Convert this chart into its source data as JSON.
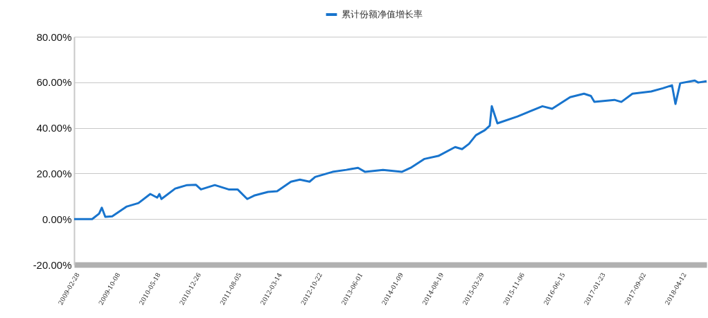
{
  "chart_data": {
    "type": "line",
    "legend": "top",
    "grid": "y",
    "marker": "none",
    "line_style": "solid",
    "xlim": [
      "2009-02-09",
      "2018-08-12"
    ],
    "xticks": [
      "2009-02-28",
      "2009-10-08",
      "2010-05-18",
      "2010-12-26",
      "2011-08-05",
      "2012-03-14",
      "2012-10-22",
      "2013-06-01",
      "2014-01-09",
      "2014-08-19",
      "2015-03-29",
      "2015-11-06",
      "2016-06-15",
      "2017-01-23",
      "2017-09-02",
      "2018-04-12"
    ],
    "ylim": [
      -20,
      80
    ],
    "yticks": [
      {
        "value": -20,
        "label": "-20.00%"
      },
      {
        "value": 0,
        "label": "0.00%"
      },
      {
        "value": 20,
        "label": "20.00%"
      },
      {
        "value": 40,
        "label": "40.00%"
      },
      {
        "value": 60,
        "label": "60.00%"
      },
      {
        "value": 80,
        "label": "80.00%"
      }
    ],
    "x": [
      "2009-02-09",
      "2009-05-19",
      "2009-06-26",
      "2009-07-11",
      "2009-07-30",
      "2009-09-06",
      "2009-11-25",
      "2010-01-28",
      "2010-04-03",
      "2010-05-11",
      "2010-05-23",
      "2010-06-03",
      "2010-08-18",
      "2010-10-22",
      "2010-12-10",
      "2011-01-06",
      "2011-03-23",
      "2011-06-07",
      "2011-07-26",
      "2011-09-17",
      "2011-10-25",
      "2012-01-09",
      "2012-02-28",
      "2012-05-14",
      "2012-07-02",
      "2012-08-24",
      "2012-09-24",
      "2012-12-28",
      "2013-03-14",
      "2013-05-17",
      "2013-06-25",
      "2013-10-01",
      "2014-01-12",
      "2014-03-02",
      "2014-05-17",
      "2014-08-01",
      "2014-11-01",
      "2014-12-09",
      "2015-01-16",
      "2015-02-23",
      "2015-04-13",
      "2015-05-10",
      "2015-05-21",
      "2015-06-21",
      "2015-10-09",
      "2016-02-23",
      "2016-04-16",
      "2016-07-24",
      "2016-10-08",
      "2016-11-15",
      "2016-12-04",
      "2017-03-24",
      "2017-05-01",
      "2017-07-01",
      "2017-10-12",
      "2017-12-15",
      "2018-02-03",
      "2018-02-22",
      "2018-03-20",
      "2018-06-08",
      "2018-06-27",
      "2018-08-12"
    ],
    "series": [
      {
        "name": "累计份额净值增长率",
        "color": "#1874cd",
        "values": [
          0,
          0,
          2.4,
          5,
          1,
          1.2,
          5.5,
          7,
          11,
          9.4,
          11,
          8.8,
          13.4,
          14.9,
          15,
          13,
          14.9,
          13,
          13,
          8.8,
          10.3,
          11.9,
          12.2,
          16.4,
          17.3,
          16.4,
          18.5,
          20.7,
          21.6,
          22.5,
          20.7,
          21.6,
          20.7,
          22.5,
          26.4,
          27.7,
          31.6,
          30.7,
          33,
          36.8,
          39,
          41,
          49.5,
          42,
          45,
          49.5,
          48.4,
          53.5,
          55,
          54,
          51.4,
          52.3,
          51.4,
          55,
          56,
          57.4,
          58.7,
          50.5,
          59.6,
          60.8,
          59.9,
          60.5
        ]
      }
    ]
  }
}
